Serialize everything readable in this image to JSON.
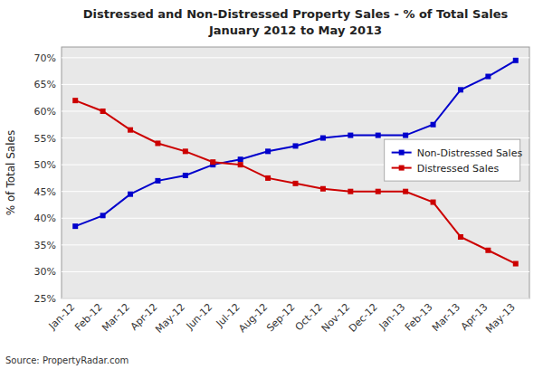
{
  "chart_data": {
    "type": "line",
    "title": "Distressed and Non-Distressed Property Sales - % of Total Sales",
    "subtitle": "January 2012 to May 2013",
    "y_label": "% of Total Sales",
    "source": "Source: PropertyRadar.com",
    "categories": [
      "Jan-12",
      "Feb-12",
      "Mar-12",
      "Apr-12",
      "May-12",
      "Jun-12",
      "Jul-12",
      "Aug-12",
      "Sep-12",
      "Oct-12",
      "Nov-12",
      "Dec-12",
      "Jan-13",
      "Feb-13",
      "Mar-13",
      "Apr-13",
      "May-13"
    ],
    "series": [
      {
        "name": "Non-Distressed Sales",
        "color": "#0000CC",
        "marker": "square",
        "line_style": "solid",
        "values": [
          38.5,
          40.5,
          44.5,
          47.0,
          48.0,
          50.0,
          51.0,
          52.5,
          53.5,
          55.0,
          55.5,
          55.5,
          55.5,
          57.5,
          64.0,
          66.5,
          69.5
        ]
      },
      {
        "name": "Distressed Sales",
        "color": "#CC0000",
        "marker": "square",
        "line_style": "solid",
        "values": [
          62.0,
          60.0,
          56.5,
          54.0,
          52.5,
          50.5,
          50.0,
          47.5,
          46.5,
          45.5,
          45.0,
          45.0,
          45.0,
          43.0,
          36.5,
          34.0,
          31.5
        ]
      }
    ],
    "ylim": [
      25,
      72
    ],
    "yticks": [
      {
        "value": 25,
        "label": "25%"
      },
      {
        "value": 30,
        "label": "30%"
      },
      {
        "value": 35,
        "label": "35%"
      },
      {
        "value": 40,
        "label": "40%"
      },
      {
        "value": 45,
        "label": "45%"
      },
      {
        "value": 50,
        "label": "50%"
      },
      {
        "value": 55,
        "label": "55%"
      },
      {
        "value": 60,
        "label": "60%"
      },
      {
        "value": 65,
        "label": "65%"
      },
      {
        "value": 70,
        "label": "70%"
      }
    ],
    "grid": true,
    "legend": "right"
  }
}
